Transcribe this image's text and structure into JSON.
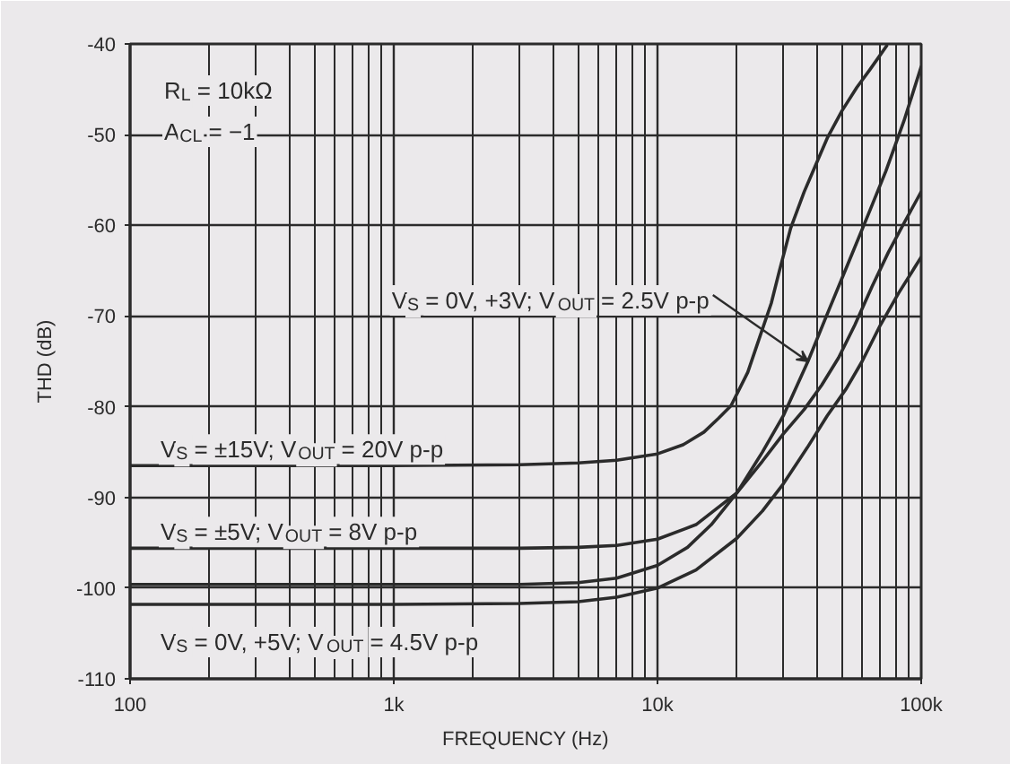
{
  "chart_data": {
    "type": "line",
    "xlabel": "FREQUENCY (Hz)",
    "ylabel": "THD (dB)",
    "log": "x",
    "grid": true,
    "line_style": "solid",
    "xlim": [
      100,
      100000
    ],
    "xticks": [
      100,
      {
        "value": 1000,
        "label": "1k"
      },
      {
        "value": 10000,
        "label": "10k"
      },
      {
        "value": 100000,
        "label": "100k"
      }
    ],
    "ylim": [
      -110,
      -40
    ],
    "yticks": [
      -110,
      -100,
      -90,
      -80,
      -70,
      -60,
      -50,
      -40
    ],
    "annotations": [
      "R$_{L}$ = 10kΩ",
      "A$_{CL}$ = −1",
      {
        "text": "V$_{S}$ = 0V, +3V; V$_{OUT}$ = 2.5V p-p",
        "x": 37200,
        "y": -75
      }
    ],
    "series": [
      {
        "name": "V$_{S}$ = ±15V; V$_{OUT}$ = 20V p-p",
        "color": "#2b2b2b",
        "x": [
          100,
          300,
          1000,
          3000,
          5000,
          7000,
          10000,
          12500,
          15000,
          17000,
          19000,
          22000,
          24500,
          27000,
          29000,
          32000,
          36000,
          40000,
          44000,
          50000,
          57000,
          64000,
          70000,
          74000
        ],
        "values": [
          -86.5,
          -86.5,
          -86.5,
          -86.4,
          -86.2,
          -85.9,
          -85.2,
          -84.2,
          -82.8,
          -81.3,
          -79.9,
          -76.2,
          -72.2,
          -68.6,
          -65.0,
          -60.3,
          -56.3,
          -53.2,
          -50.4,
          -47.4,
          -44.8,
          -42.8,
          -41.2,
          -40.2
        ]
      },
      {
        "name": "V$_{S}$ = ±5V; V$_{OUT}$ = 8V p-p",
        "color": "#2b2b2b",
        "x": [
          100,
          300,
          1000,
          3000,
          5000,
          7000,
          10000,
          14000,
          20000,
          25000,
          30000,
          36000,
          42000,
          48600,
          56000,
          65000,
          75000,
          87000,
          100000
        ],
        "values": [
          -95.6,
          -95.6,
          -95.6,
          -95.6,
          -95.5,
          -95.3,
          -94.6,
          -93.0,
          -89.5,
          -86.0,
          -83.0,
          -80.3,
          -77.6,
          -74.6,
          -71.0,
          -66.8,
          -63.0,
          -59.5,
          -56.3
        ]
      },
      {
        "color": "#2b2b2b",
        "x": [
          100,
          300,
          1000,
          3000,
          5000,
          7000,
          10000,
          13000,
          16000,
          20000,
          25000,
          30000,
          37200,
          44000,
          53700,
          63000,
          73500,
          86000,
          100000
        ],
        "values": [
          -99.6,
          -99.6,
          -99.6,
          -99.6,
          -99.4,
          -98.9,
          -97.5,
          -95.5,
          -93.0,
          -89.5,
          -85.0,
          -81.0,
          -75.0,
          -69.8,
          -63.7,
          -58.8,
          -54.0,
          -48.5,
          -42.5
        ]
      },
      {
        "name": "V$_{S}$ = 0V, +5V; V$_{OUT}$ = 4.5V p-p",
        "color": "#2b2b2b",
        "x": [
          100,
          300,
          1000,
          3000,
          5000,
          7000,
          10000,
          14000,
          20000,
          25000,
          30000,
          37000,
          44000,
          52000,
          59700,
          70000,
          82000,
          100000
        ],
        "values": [
          -101.8,
          -101.8,
          -101.8,
          -101.7,
          -101.5,
          -101.0,
          -100.0,
          -98.0,
          -94.5,
          -91.5,
          -88.5,
          -84.5,
          -81.0,
          -78.0,
          -75.0,
          -71.0,
          -67.5,
          -63.5
        ]
      }
    ]
  }
}
